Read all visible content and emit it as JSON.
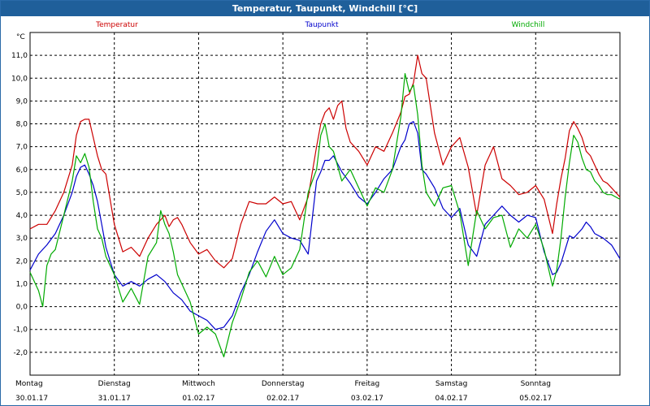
{
  "window": {
    "title": "Temperatur, Taupunkt, Windchill [°C]"
  },
  "chart_data": {
    "type": "line",
    "title": "Temperatur, Taupunkt, Windchill [°C]",
    "ylabel": "°C",
    "ylim": [
      -3.0,
      12.0
    ],
    "y_ticks": [
      "11,0",
      "10,0",
      "9,0",
      "8,0",
      "7,0",
      "6,0",
      "5,0",
      "4,0",
      "3,0",
      "2,0",
      "1,0",
      "0,0",
      "-1,0",
      "-2,0"
    ],
    "x_labels": [
      {
        "day": "Montag",
        "date": "30.01.17"
      },
      {
        "day": "Dienstag",
        "date": "31.01.17"
      },
      {
        "day": "Mittwoch",
        "date": "01.02.17"
      },
      {
        "day": "Donnerstag",
        "date": "02.02.17"
      },
      {
        "day": "Freitag",
        "date": "03.02.17"
      },
      {
        "day": "Samstag",
        "date": "04.02.17"
      },
      {
        "day": "Sonntag",
        "date": "05.02.17"
      }
    ],
    "x_unit": "days since 30.01.17 00:00",
    "xlim": [
      0,
      7.0
    ],
    "grid": true,
    "series": [
      {
        "name": "Temperatur",
        "color": "#cc0000",
        "x": [
          0,
          0.1,
          0.2,
          0.3,
          0.4,
          0.5,
          0.55,
          0.6,
          0.65,
          0.7,
          0.75,
          0.8,
          0.85,
          0.9,
          1.0,
          1.1,
          1.2,
          1.3,
          1.4,
          1.5,
          1.6,
          1.65,
          1.7,
          1.75,
          1.8,
          1.85,
          1.9,
          2.0,
          2.1,
          2.2,
          2.3,
          2.4,
          2.5,
          2.6,
          2.7,
          2.8,
          2.9,
          3.0,
          3.1,
          3.2,
          3.3,
          3.4,
          3.45,
          3.5,
          3.55,
          3.6,
          3.65,
          3.7,
          3.75,
          3.8,
          3.9,
          4.0,
          4.1,
          4.2,
          4.3,
          4.4,
          4.45,
          4.5,
          4.55,
          4.6,
          4.65,
          4.7,
          4.8,
          4.9,
          5.0,
          5.1,
          5.2,
          5.3,
          5.4,
          5.5,
          5.6,
          5.7,
          5.8,
          5.9,
          6.0,
          6.1,
          6.2,
          6.25,
          6.3,
          6.35,
          6.4,
          6.45,
          6.5,
          6.55,
          6.6,
          6.65,
          6.7,
          6.75,
          6.8,
          6.85,
          6.9,
          7.0
        ],
        "values": [
          3.4,
          3.6,
          3.6,
          4.2,
          5.0,
          6.2,
          7.5,
          8.1,
          8.2,
          8.2,
          7.4,
          6.6,
          6.0,
          5.8,
          3.6,
          2.4,
          2.6,
          2.2,
          3.0,
          3.6,
          4.0,
          3.5,
          3.8,
          3.9,
          3.6,
          3.2,
          2.8,
          2.3,
          2.5,
          2.0,
          1.7,
          2.1,
          3.6,
          4.6,
          4.5,
          4.5,
          4.8,
          4.5,
          4.6,
          3.8,
          4.8,
          7.0,
          8.0,
          8.5,
          8.7,
          8.2,
          8.8,
          9.0,
          7.8,
          7.2,
          6.8,
          6.2,
          7.0,
          6.8,
          7.6,
          8.5,
          9.2,
          9.3,
          9.8,
          11.0,
          10.2,
          10.0,
          7.6,
          6.2,
          7.0,
          7.4,
          6.1,
          4.0,
          6.2,
          7.0,
          5.6,
          5.3,
          4.9,
          5.0,
          5.3,
          4.7,
          3.2,
          4.5,
          5.6,
          6.5,
          7.7,
          8.1,
          7.8,
          7.4,
          6.8,
          6.6,
          6.2,
          5.8,
          5.5,
          5.4,
          5.2,
          4.8
        ]
      },
      {
        "name": "Taupunkt",
        "color": "#0000cc",
        "x": [
          0,
          0.1,
          0.2,
          0.3,
          0.4,
          0.5,
          0.55,
          0.6,
          0.65,
          0.7,
          0.75,
          0.8,
          0.85,
          0.9,
          1.0,
          1.1,
          1.2,
          1.3,
          1.4,
          1.5,
          1.6,
          1.7,
          1.8,
          1.9,
          2.0,
          2.1,
          2.2,
          2.3,
          2.4,
          2.5,
          2.6,
          2.7,
          2.8,
          2.9,
          3.0,
          3.1,
          3.2,
          3.3,
          3.4,
          3.45,
          3.5,
          3.55,
          3.6,
          3.7,
          3.8,
          3.9,
          4.0,
          4.1,
          4.2,
          4.3,
          4.4,
          4.45,
          4.5,
          4.55,
          4.6,
          4.65,
          4.7,
          4.8,
          4.9,
          5.0,
          5.1,
          5.2,
          5.3,
          5.4,
          5.5,
          5.6,
          5.7,
          5.8,
          5.9,
          6.0,
          6.1,
          6.2,
          6.25,
          6.3,
          6.35,
          6.4,
          6.45,
          6.5,
          6.55,
          6.6,
          6.65,
          6.7,
          6.8,
          6.9,
          7.0
        ],
        "values": [
          1.6,
          2.3,
          2.7,
          3.2,
          4.0,
          5.0,
          5.7,
          6.1,
          6.2,
          5.8,
          5.3,
          4.6,
          3.6,
          2.6,
          1.4,
          0.9,
          1.1,
          0.9,
          1.2,
          1.4,
          1.1,
          0.6,
          0.3,
          -0.2,
          -0.4,
          -0.6,
          -1.0,
          -0.9,
          -0.4,
          0.6,
          1.4,
          2.4,
          3.3,
          3.8,
          3.2,
          3.0,
          2.9,
          2.3,
          5.5,
          5.9,
          6.4,
          6.4,
          6.6,
          5.9,
          5.4,
          4.8,
          4.5,
          5.0,
          5.6,
          6.0,
          7.0,
          7.3,
          8.0,
          8.1,
          7.6,
          6.0,
          5.8,
          5.2,
          4.3,
          3.9,
          4.3,
          2.7,
          2.2,
          3.6,
          4.0,
          4.4,
          4.0,
          3.7,
          4.0,
          3.9,
          2.4,
          1.4,
          1.5,
          1.9,
          2.5,
          3.1,
          3.0,
          3.2,
          3.4,
          3.7,
          3.5,
          3.2,
          3.0,
          2.7,
          2.1
        ]
      },
      {
        "name": "Windchill",
        "color": "#00aa00",
        "x": [
          0,
          0.1,
          0.15,
          0.2,
          0.25,
          0.3,
          0.4,
          0.5,
          0.55,
          0.6,
          0.65,
          0.7,
          0.75,
          0.8,
          0.85,
          0.9,
          1.0,
          1.1,
          1.2,
          1.3,
          1.4,
          1.5,
          1.55,
          1.6,
          1.65,
          1.7,
          1.75,
          1.8,
          1.9,
          2.0,
          2.1,
          2.2,
          2.3,
          2.4,
          2.5,
          2.6,
          2.7,
          2.8,
          2.9,
          3.0,
          3.1,
          3.2,
          3.3,
          3.4,
          3.45,
          3.5,
          3.55,
          3.6,
          3.7,
          3.8,
          3.9,
          4.0,
          4.1,
          4.2,
          4.3,
          4.4,
          4.45,
          4.5,
          4.55,
          4.6,
          4.65,
          4.7,
          4.8,
          4.9,
          5.0,
          5.1,
          5.2,
          5.3,
          5.4,
          5.5,
          5.6,
          5.7,
          5.8,
          5.9,
          6.0,
          6.1,
          6.2,
          6.25,
          6.3,
          6.35,
          6.4,
          6.45,
          6.5,
          6.55,
          6.6,
          6.65,
          6.7,
          6.75,
          6.8,
          6.85,
          6.9,
          7.0
        ],
        "values": [
          1.5,
          0.7,
          0.0,
          1.8,
          2.3,
          2.5,
          4.0,
          5.5,
          6.6,
          6.3,
          6.7,
          6.1,
          4.6,
          3.4,
          3.0,
          2.2,
          1.4,
          0.2,
          0.8,
          0.1,
          2.2,
          2.8,
          4.2,
          3.6,
          3.2,
          2.4,
          1.4,
          1.0,
          0.2,
          -1.2,
          -0.9,
          -1.2,
          -2.2,
          -0.7,
          0.3,
          1.5,
          2.0,
          1.3,
          2.2,
          1.4,
          1.7,
          2.5,
          5.0,
          6.0,
          7.5,
          8.0,
          7.0,
          6.8,
          5.5,
          6.0,
          5.2,
          4.4,
          5.2,
          5.0,
          6.0,
          8.3,
          10.2,
          9.4,
          9.7,
          8.4,
          6.2,
          5.0,
          4.4,
          5.2,
          5.3,
          4.1,
          1.8,
          4.2,
          3.4,
          3.9,
          4.0,
          2.6,
          3.4,
          3.0,
          3.6,
          2.5,
          0.9,
          1.6,
          3.0,
          4.8,
          6.3,
          7.5,
          7.2,
          6.5,
          6.0,
          5.9,
          5.5,
          5.3,
          5.0,
          4.9,
          4.9,
          4.7
        ]
      }
    ]
  }
}
